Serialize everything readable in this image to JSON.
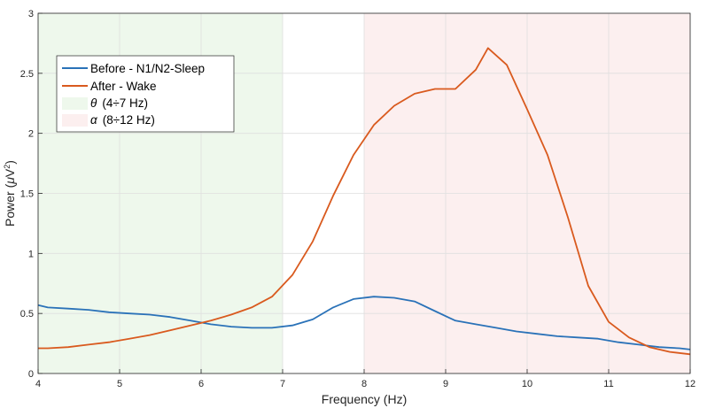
{
  "chart_data": {
    "type": "line",
    "title": "",
    "xlabel": "Frequency (Hz)",
    "ylabel": "Power (μV²)",
    "ylabel_main": "Power (",
    "ylabel_mu": "μ",
    "ylabel_unit": "V",
    "ylabel_exp": "2",
    "ylabel_close": ")",
    "xlim": [
      4,
      12
    ],
    "ylim": [
      0,
      3
    ],
    "xticks": [
      4,
      5,
      6,
      7,
      8,
      9,
      10,
      11,
      12
    ],
    "yticks": [
      0,
      0.5,
      1,
      1.5,
      2,
      2.5,
      3
    ],
    "xtick_labels": [
      "4",
      "5",
      "6",
      "7",
      "8",
      "9",
      "10",
      "11",
      "12"
    ],
    "ytick_labels": [
      "0",
      "0.5",
      "1",
      "1.5",
      "2",
      "2.5",
      "3"
    ],
    "grid": true,
    "legend_position": "top-left",
    "bands": [
      {
        "name": "θ (4÷7 Hz)",
        "symbol": "θ",
        "range_text": "(4÷7  Hz)",
        "from": 4,
        "to": 7,
        "color": "#eef8ec"
      },
      {
        "name": "α (8÷12 Hz)",
        "symbol": "α",
        "range_text": "(8÷12  Hz)",
        "from": 8,
        "to": 12,
        "color": "#fcefef"
      }
    ],
    "series": [
      {
        "name": "Before - N1/N2-Sleep",
        "color": "#2a72b8",
        "x": [
          4.0,
          4.12,
          4.37,
          4.62,
          4.87,
          5.12,
          5.37,
          5.62,
          5.87,
          6.12,
          6.37,
          6.62,
          6.87,
          7.12,
          7.37,
          7.62,
          7.87,
          8.12,
          8.37,
          8.62,
          8.87,
          9.12,
          9.37,
          9.62,
          9.87,
          10.12,
          10.37,
          10.62,
          10.87,
          11.12,
          11.37,
          11.62,
          11.87,
          12.0
        ],
        "y": [
          0.57,
          0.55,
          0.54,
          0.53,
          0.51,
          0.5,
          0.49,
          0.47,
          0.44,
          0.41,
          0.39,
          0.38,
          0.38,
          0.4,
          0.45,
          0.55,
          0.62,
          0.64,
          0.63,
          0.6,
          0.52,
          0.44,
          0.41,
          0.38,
          0.35,
          0.33,
          0.31,
          0.3,
          0.29,
          0.26,
          0.24,
          0.22,
          0.21,
          0.2
        ]
      },
      {
        "name": "After - Wake",
        "color": "#d95a1e",
        "x": [
          4.0,
          4.12,
          4.37,
          4.62,
          4.87,
          5.12,
          5.37,
          5.62,
          5.87,
          6.12,
          6.37,
          6.62,
          6.87,
          7.12,
          7.37,
          7.62,
          7.87,
          8.12,
          8.37,
          8.62,
          8.87,
          9.12,
          9.37,
          9.52,
          9.75,
          10.0,
          10.25,
          10.5,
          10.75,
          11.0,
          11.25,
          11.5,
          11.75,
          12.0
        ],
        "y": [
          0.21,
          0.21,
          0.22,
          0.24,
          0.26,
          0.29,
          0.32,
          0.36,
          0.4,
          0.44,
          0.49,
          0.55,
          0.64,
          0.82,
          1.1,
          1.48,
          1.82,
          2.07,
          2.23,
          2.33,
          2.37,
          2.37,
          2.53,
          2.71,
          2.57,
          2.2,
          1.82,
          1.3,
          0.73,
          0.43,
          0.3,
          0.22,
          0.18,
          0.16
        ]
      }
    ]
  }
}
